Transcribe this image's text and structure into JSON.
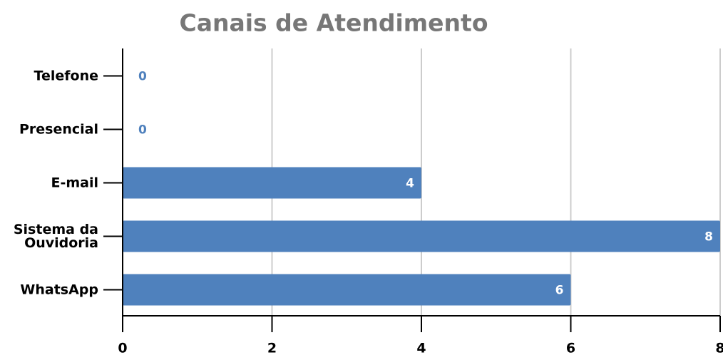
{
  "chart_data": {
    "type": "bar",
    "orientation": "horizontal",
    "title": "Canais de Atendimento",
    "categories": [
      "Telefone",
      "Presencial",
      "E-mail",
      "Sistema da Ouvidoria",
      "WhatsApp"
    ],
    "values": [
      0,
      0,
      4,
      8,
      6
    ],
    "color": "#4f81bd",
    "xlim": [
      0,
      8
    ],
    "xticks": [
      0,
      2,
      4,
      6,
      8
    ],
    "grid": true
  }
}
